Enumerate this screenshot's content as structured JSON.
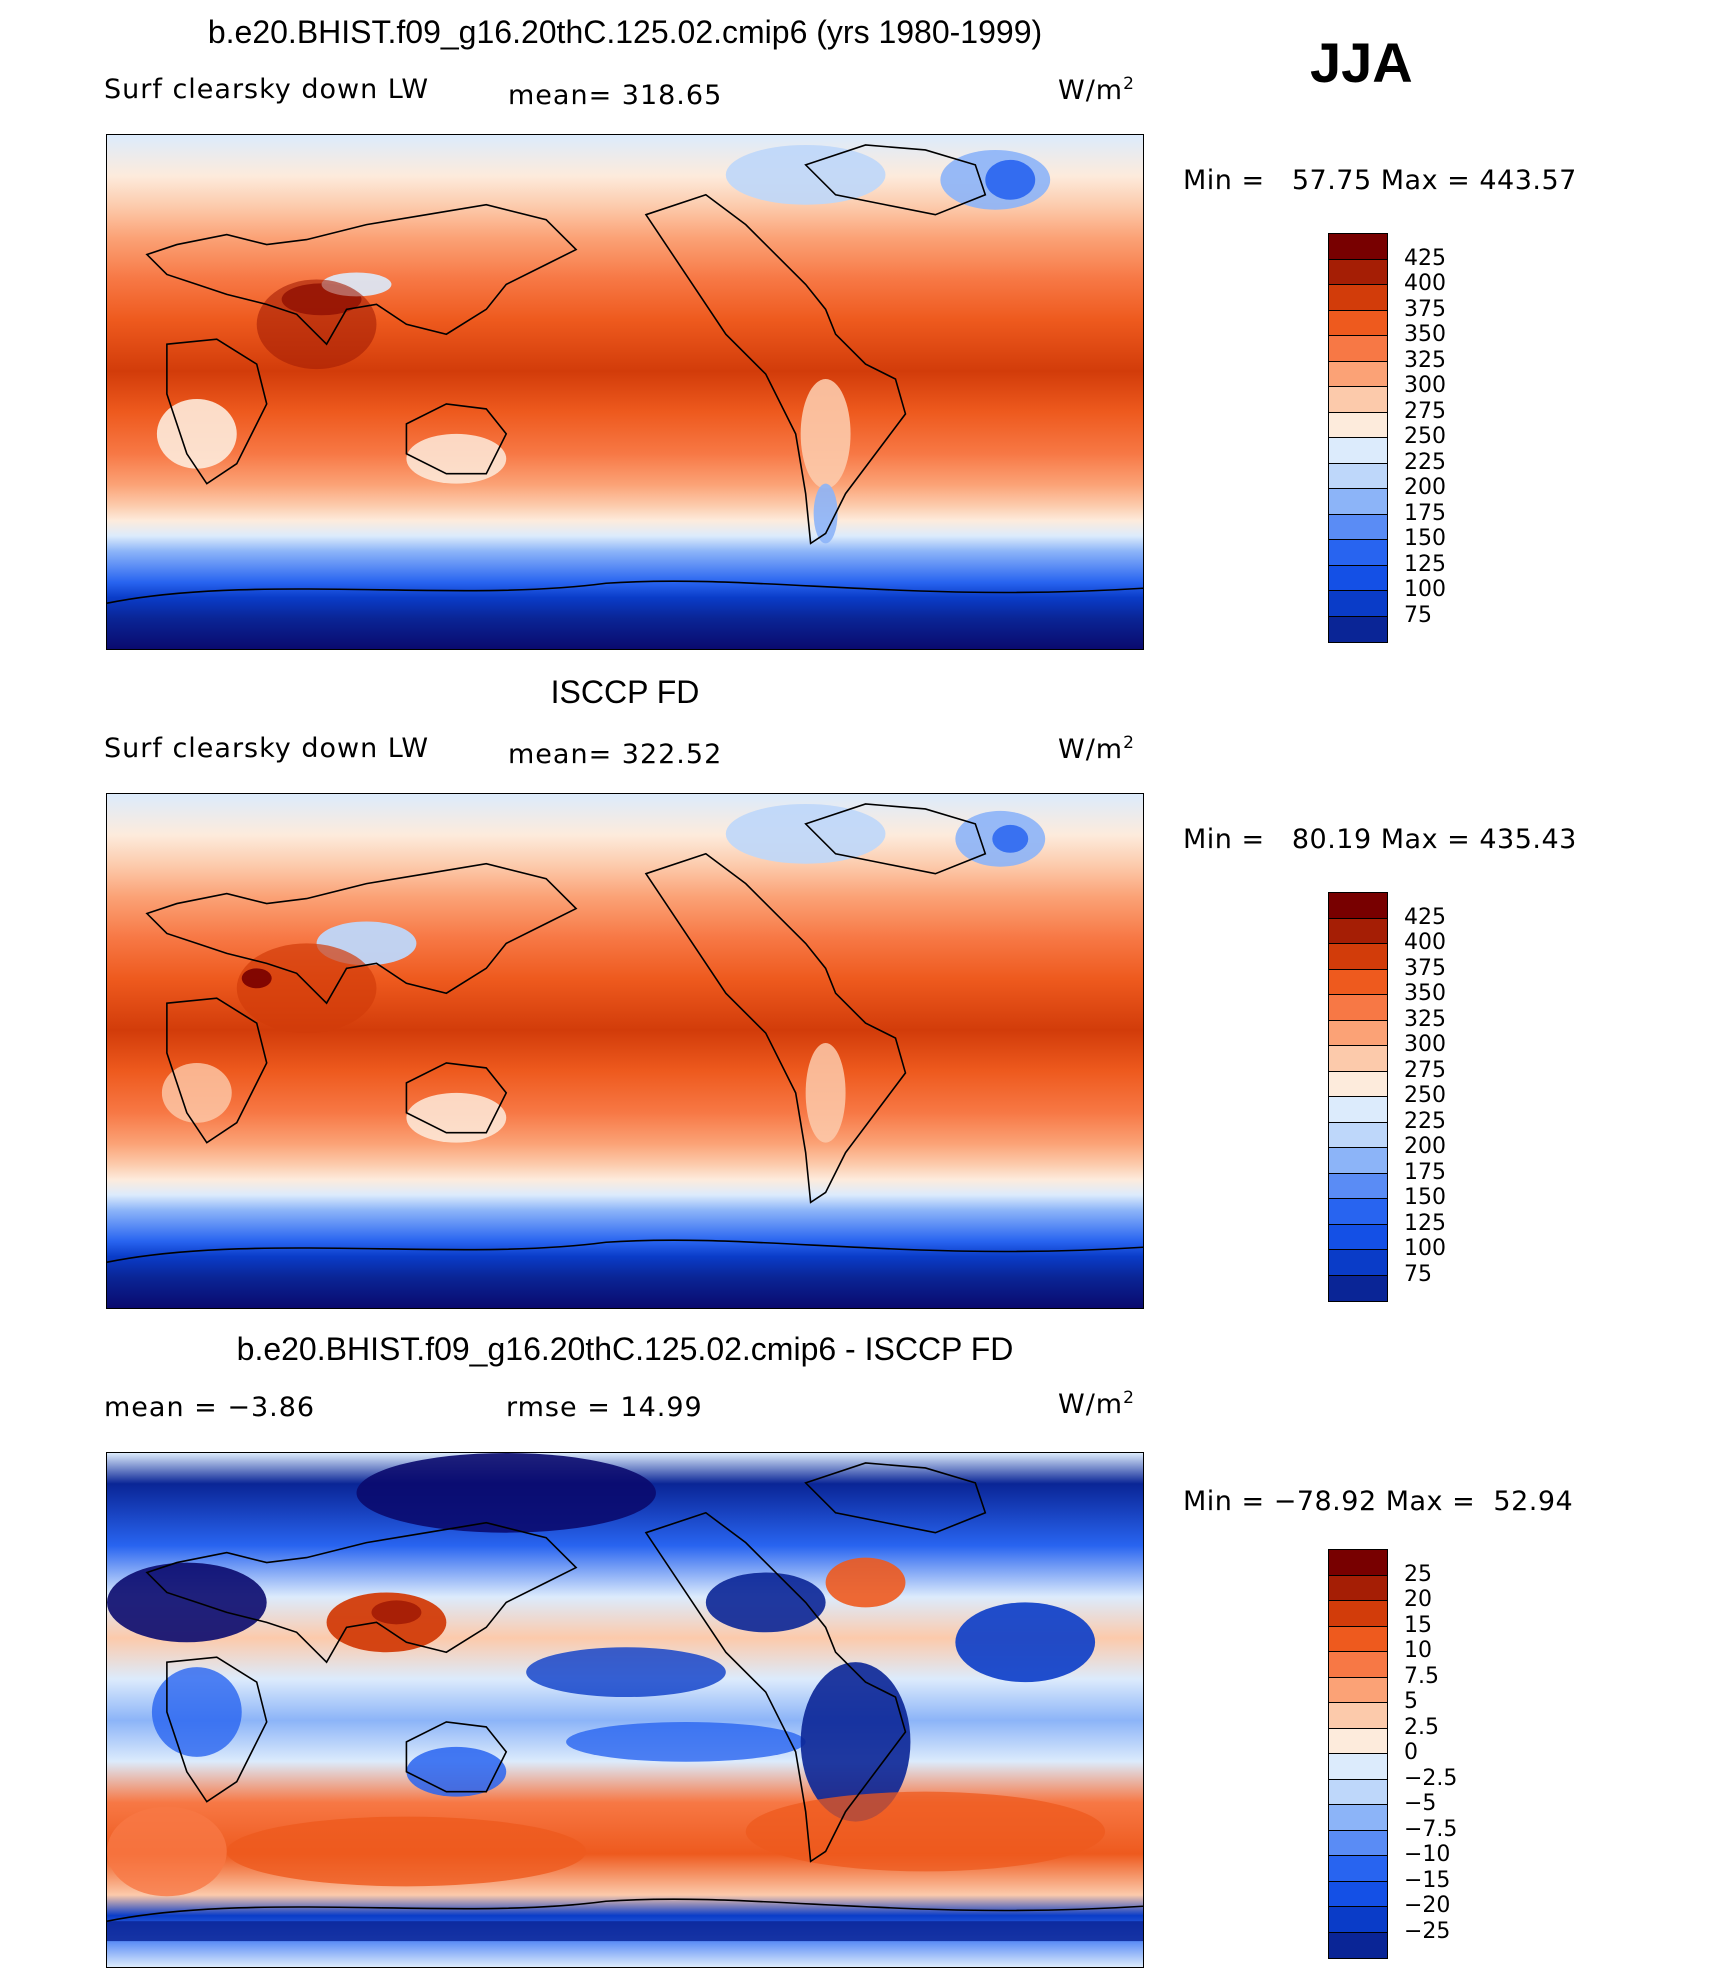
{
  "season": "JJA",
  "panels": [
    {
      "title": "b.e20.BHIST.f09_g16.20thC.125.02.cmip6 (yrs 1980-1999)",
      "left_label": "Surf clearsky down LW",
      "center_label": "mean= 318.65",
      "units": "W/m",
      "units_sup": "2",
      "min_max": "Min =   57.75 Max = 443.57",
      "colorbar_labels": [
        "425",
        "400",
        "375",
        "350",
        "325",
        "300",
        "275",
        "250",
        "225",
        "200",
        "175",
        "150",
        "125",
        "100",
        "75"
      ]
    },
    {
      "title": "ISCCP FD",
      "left_label": "Surf clearsky down LW",
      "center_label": "mean= 322.52",
      "units": "W/m",
      "units_sup": "2",
      "min_max": "Min =   80.19 Max = 435.43",
      "colorbar_labels": [
        "425",
        "400",
        "375",
        "350",
        "325",
        "300",
        "275",
        "250",
        "225",
        "200",
        "175",
        "150",
        "125",
        "100",
        "75"
      ]
    },
    {
      "title": "b.e20.BHIST.f09_g16.20thC.125.02.cmip6 - ISCCP FD",
      "left_label": "mean =   −3.86",
      "center_label": "rmse =   14.99",
      "units": "W/m",
      "units_sup": "2",
      "min_max": "Min = −78.92 Max =  52.94",
      "colorbar_labels": [
        "25",
        "20",
        "15",
        "10",
        "7.5",
        "5",
        "2.5",
        "0",
        "−2.5",
        "−5",
        "−7.5",
        "−10",
        "−15",
        "−20",
        "−25"
      ]
    }
  ],
  "colors": {
    "abs_scale": [
      "#0a0a6e",
      "#0a2596",
      "#0a3cc8",
      "#1450e6",
      "#2864f0",
      "#5a8cf5",
      "#8cb4f8",
      "#bed7fa",
      "#dcebfc",
      "#fdebdc",
      "#fccaab",
      "#fba276",
      "#f77845",
      "#ee5a1e",
      "#d23c0a",
      "#a51e05",
      "#780000"
    ],
    "diff_scale": [
      "#0a0a6e",
      "#0a2596",
      "#0a3cc8",
      "#1450e6",
      "#2864f0",
      "#5a8cf5",
      "#8cb4f8",
      "#bed7fa",
      "#dcebfc",
      "#fdebdc",
      "#fccaab",
      "#fba276",
      "#f77845",
      "#ee5a1e",
      "#d23c0a",
      "#a51e05",
      "#780000"
    ]
  }
}
